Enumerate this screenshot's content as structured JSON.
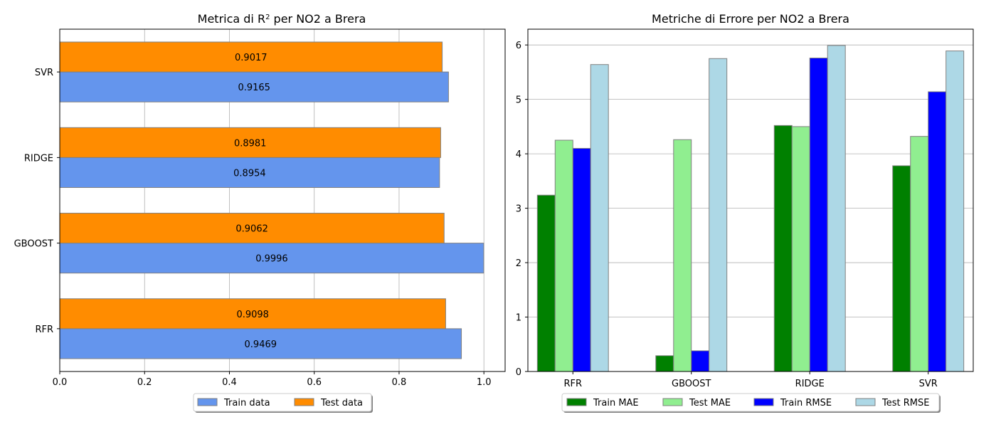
{
  "chart_data": [
    {
      "type": "bar",
      "orientation": "horizontal",
      "title_main": "Metrica di R",
      "title_sup": "2",
      "title_rest": " per NO2 a Brera",
      "categories": [
        "RFR",
        "GBOOST",
        "RIDGE",
        "SVR"
      ],
      "series": [
        {
          "name": "Train data",
          "color": "#6495ED",
          "values": [
            0.9469,
            0.9996,
            0.8954,
            0.9165
          ]
        },
        {
          "name": "Test data",
          "color": "#FF8C00",
          "values": [
            0.9098,
            0.9062,
            0.8981,
            0.9017
          ]
        }
      ],
      "data_labels": {
        "train": [
          "0.9469",
          "0.9996",
          "0.8954",
          "0.9165"
        ],
        "test": [
          "0.9098",
          "0.9062",
          "0.8981",
          "0.9017"
        ]
      },
      "xlim": [
        0,
        1.05
      ],
      "xticks": [
        "0.0",
        "0.2",
        "0.4",
        "0.6",
        "0.8",
        "1.0"
      ],
      "grid": true,
      "legend_position": "bottom-center"
    },
    {
      "type": "bar",
      "orientation": "vertical",
      "title": "Metriche di Errore per NO2 a Brera",
      "categories": [
        "RFR",
        "GBOOST",
        "RIDGE",
        "SVR"
      ],
      "series": [
        {
          "name": "Train MAE",
          "color": "#008000",
          "values": [
            3.24,
            0.29,
            4.52,
            3.78
          ]
        },
        {
          "name": "Test MAE",
          "color": "#90EE90",
          "values": [
            4.25,
            4.26,
            4.5,
            4.32
          ]
        },
        {
          "name": "Train RMSE",
          "color": "#0000FF",
          "values": [
            4.1,
            0.38,
            5.76,
            5.14
          ]
        },
        {
          "name": "Test RMSE",
          "color": "#ADD8E6",
          "values": [
            5.64,
            5.75,
            5.99,
            5.89
          ]
        }
      ],
      "ylim": [
        0,
        6.29
      ],
      "yticks": [
        "0",
        "1",
        "2",
        "3",
        "4",
        "5",
        "6"
      ],
      "grid": true,
      "legend_position": "bottom-center"
    }
  ]
}
